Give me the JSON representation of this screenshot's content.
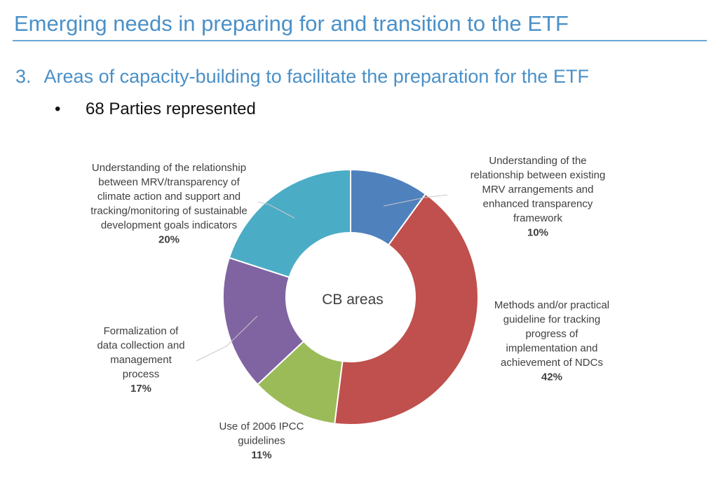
{
  "slide_title": "Emerging needs in preparing for and transition to the ETF",
  "heading": {
    "number": "3.",
    "text": "Areas of capacity-building to facilitate the preparation for the ETF"
  },
  "bullet": {
    "symbol": "•",
    "text": "68 Parties represented"
  },
  "chart_data": {
    "type": "pie",
    "style": "donut",
    "center_label": "CB areas",
    "slices": [
      {
        "label_lines": [
          "Understanding of the",
          "relationship between existing",
          "MRV arrangements and",
          "enhanced transparency",
          "framework"
        ],
        "value": 10,
        "display": "10%",
        "color": "#4f81bd"
      },
      {
        "label_lines": [
          "Methods and/or practical",
          "guideline for tracking",
          "progress of",
          "implementation and",
          "achievement of NDCs"
        ],
        "value": 42,
        "display": "42%",
        "color": "#c0504d"
      },
      {
        "label_lines": [
          "Use of 2006 IPCC",
          "guidelines"
        ],
        "value": 11,
        "display": "11%",
        "color": "#9bbb59"
      },
      {
        "label_lines": [
          "Formalization of",
          "data collection and",
          "management",
          "process"
        ],
        "value": 17,
        "display": "17%",
        "color": "#8064a2"
      },
      {
        "label_lines": [
          "Understanding of the relationship",
          "between MRV/transparency of",
          "climate action and support and",
          "tracking/monitoring of sustainable",
          "development goals indicators"
        ],
        "value": 20,
        "display": "20%",
        "color": "#4bacc6"
      }
    ]
  }
}
